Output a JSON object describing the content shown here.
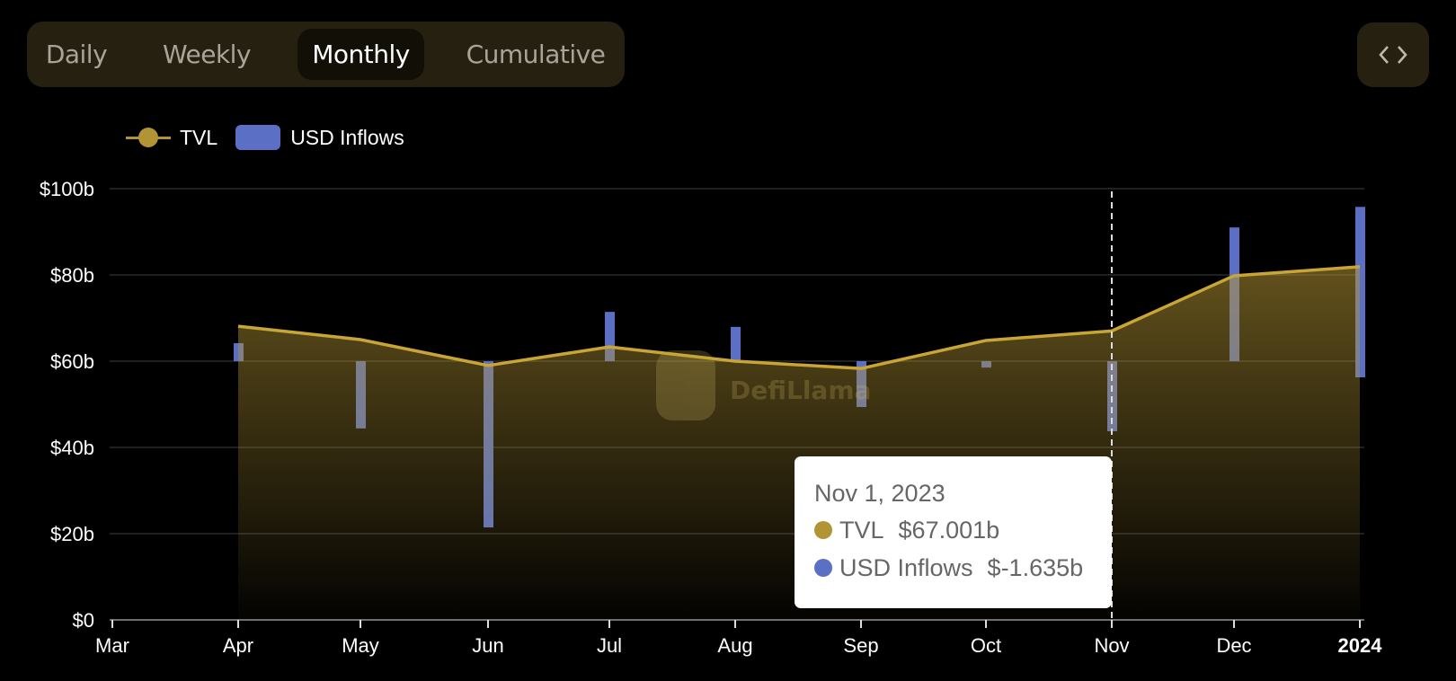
{
  "tabs": [
    {
      "label": "Daily",
      "active": false
    },
    {
      "label": "Weekly",
      "active": false
    },
    {
      "label": "Monthly",
      "active": true
    },
    {
      "label": "Cumulative",
      "active": false
    }
  ],
  "embed_button": {
    "icon": "code-brackets-icon"
  },
  "legend": [
    {
      "label": "TVL",
      "color": "#b39434",
      "type": "line"
    },
    {
      "label": "USD Inflows",
      "color": "#5b70c4",
      "type": "bar"
    }
  ],
  "watermark": "DefiLlama",
  "tooltip": {
    "date": "Nov 1, 2023",
    "rows": [
      {
        "label": "TVL",
        "value": "$67.001b",
        "color": "#b39434"
      },
      {
        "label": "USD Inflows",
        "value": "$-1.635b",
        "color": "#5b70c4"
      }
    ]
  },
  "chart_data": {
    "type": "line",
    "title": "",
    "xlabel": "",
    "ylabel": "",
    "ylim": [
      0,
      100
    ],
    "y_ticks": [
      "$0",
      "$20b",
      "$40b",
      "$60b",
      "$80b",
      "$100b"
    ],
    "x_ticks": [
      "Mar",
      "Apr",
      "May",
      "Jun",
      "Jul",
      "Aug",
      "Sep",
      "Oct",
      "Nov",
      "Dec",
      "2024"
    ],
    "categories": [
      "Apr",
      "May",
      "Jun",
      "Jul",
      "Aug",
      "Sep",
      "Oct",
      "Nov",
      "Dec",
      "2024"
    ],
    "series": [
      {
        "name": "TVL",
        "type": "area-line",
        "unit": "$b",
        "values": [
          68.1,
          65.0,
          59.0,
          63.3,
          60.0,
          58.3,
          64.8,
          67.001,
          79.8,
          81.9
        ]
      },
      {
        "name": "USD Inflows",
        "type": "bar",
        "unit": "$b",
        "values": [
          0.42,
          -1.57,
          -3.88,
          1.15,
          0.8,
          -1.07,
          -0.15,
          -1.635,
          3.12,
          3.6
        ]
      }
    ],
    "legend_position": "top-left",
    "grid": true,
    "highlighted": "Nov"
  }
}
